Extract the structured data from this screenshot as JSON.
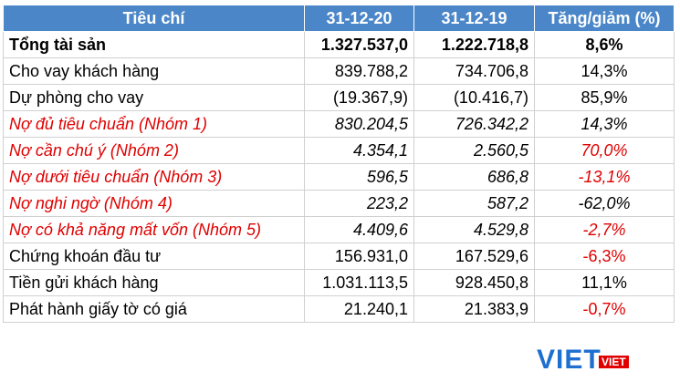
{
  "table": {
    "header": [
      "Tiêu chí",
      "31-12-20",
      "31-12-19",
      "Tăng/giảm (%)"
    ],
    "rows": [
      [
        "Tổng tài sản",
        "1.327.537,0",
        "1.222.718,8",
        "8,6%"
      ],
      [
        "Cho vay khách hàng",
        "839.788,2",
        "734.706,8",
        "14,3%"
      ],
      [
        "Dự phòng cho vay",
        "(19.367,9)",
        "(10.416,7)",
        "85,9%"
      ],
      [
        "Nợ đủ tiêu chuẩn (Nhóm 1)",
        "830.204,5",
        "726.342,2",
        "14,3%"
      ],
      [
        "Nợ cần chú ý (Nhóm 2)",
        "4.354,1",
        "2.560,5",
        "70,0%"
      ],
      [
        "Nợ dưới tiêu chuẩn (Nhóm 3)",
        "596,5",
        "686,8",
        "-13,1%"
      ],
      [
        "Nợ nghi ngờ (Nhóm 4)",
        "223,2",
        "587,2",
        "-62,0%"
      ],
      [
        "Nợ có khả năng mất vốn (Nhóm 5)",
        "4.409,6",
        "4.529,8",
        "-2,7%"
      ],
      [
        "Chứng khoán đầu tư",
        "156.931,0",
        "167.529,6",
        "-6,3%"
      ],
      [
        "Tiền gửi khách hàng",
        "1.031.113,5",
        "928.450,8",
        "11,1%"
      ],
      [
        "Phát hành giấy tờ có giá",
        "21.240,1",
        "21.383,9",
        "-0,7%"
      ]
    ]
  },
  "watermark": "VIET"
}
